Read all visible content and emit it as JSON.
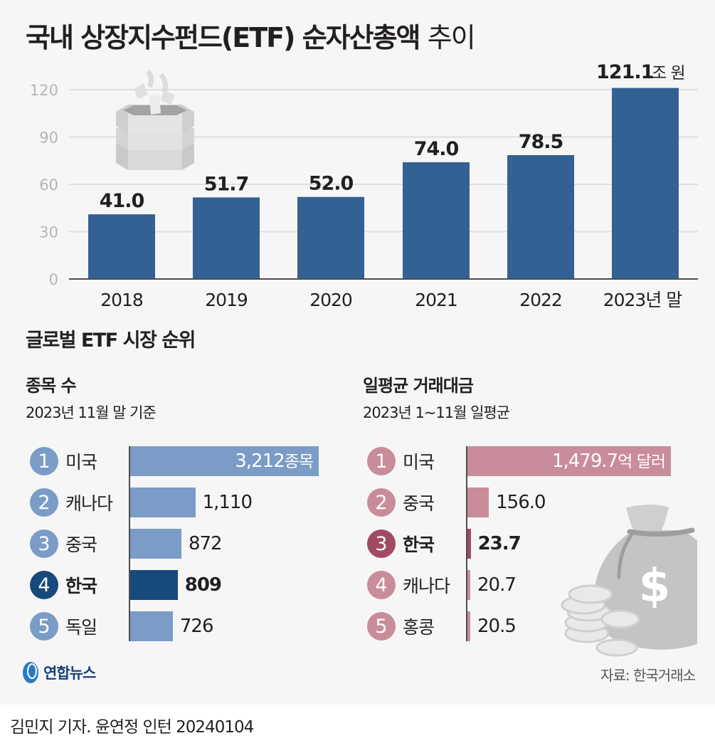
{
  "title": {
    "bold": "국내 상장지수펀드(ETF) 순자산총액",
    "light": "추이"
  },
  "chart_data": [
    {
      "type": "bar",
      "title": "국내 상장지수펀드(ETF) 순자산총액 추이",
      "categories": [
        "2018",
        "2019",
        "2020",
        "2021",
        "2022",
        "2023년 말"
      ],
      "values": [
        41.0,
        51.7,
        52.0,
        74.0,
        78.5,
        121.1
      ],
      "value_labels": [
        "41.0",
        "51.7",
        "52.0",
        "74.0",
        "78.5",
        "121.1"
      ],
      "unit_label": "조 원",
      "yticks": [
        "0",
        "30",
        "60",
        "90",
        "120"
      ],
      "ylim": [
        0,
        120
      ],
      "grid": true,
      "bar_color": "#336194",
      "xlabel": "",
      "ylabel": ""
    },
    {
      "type": "bar",
      "orientation": "horizontal",
      "title": "종목 수",
      "note": "2023년 11월 말 기준",
      "ranks": [
        "1",
        "2",
        "3",
        "4",
        "5"
      ],
      "categories": [
        "미국",
        "캐나다",
        "중국",
        "한국",
        "독일"
      ],
      "values": [
        3212,
        1110,
        872,
        809,
        726
      ],
      "value_labels": [
        "3,212",
        "1,110",
        "872",
        "809",
        "726"
      ],
      "unit_label": "종목",
      "highlight": "한국",
      "bar_color": "#7a9cc6",
      "highlight_color": "#174a7c"
    },
    {
      "type": "bar",
      "orientation": "horizontal",
      "title": "일평균 거래대금",
      "note": "2023년 1~11월 일평균",
      "ranks": [
        "1",
        "2",
        "3",
        "4",
        "5"
      ],
      "categories": [
        "미국",
        "중국",
        "한국",
        "캐나다",
        "홍콩"
      ],
      "values": [
        1479.7,
        156.0,
        23.7,
        20.7,
        20.5
      ],
      "value_labels": [
        "1,479.7",
        "156.0",
        "23.7",
        "20.7",
        "20.5"
      ],
      "unit_label": "억 달러",
      "highlight": "한국",
      "bar_color": "#c98c9a",
      "highlight_color": "#a04a64"
    }
  ],
  "section": {
    "title": "글로벌 ETF 시장 순위"
  },
  "source": "자료: 한국거래소",
  "logo": {
    "text": "연합뉴스"
  },
  "credit": "김민지 기자. 윤연정 인턴  20240104",
  "icons": {
    "top": "etf-basket-icon",
    "bottom": "money-bag-icon"
  }
}
